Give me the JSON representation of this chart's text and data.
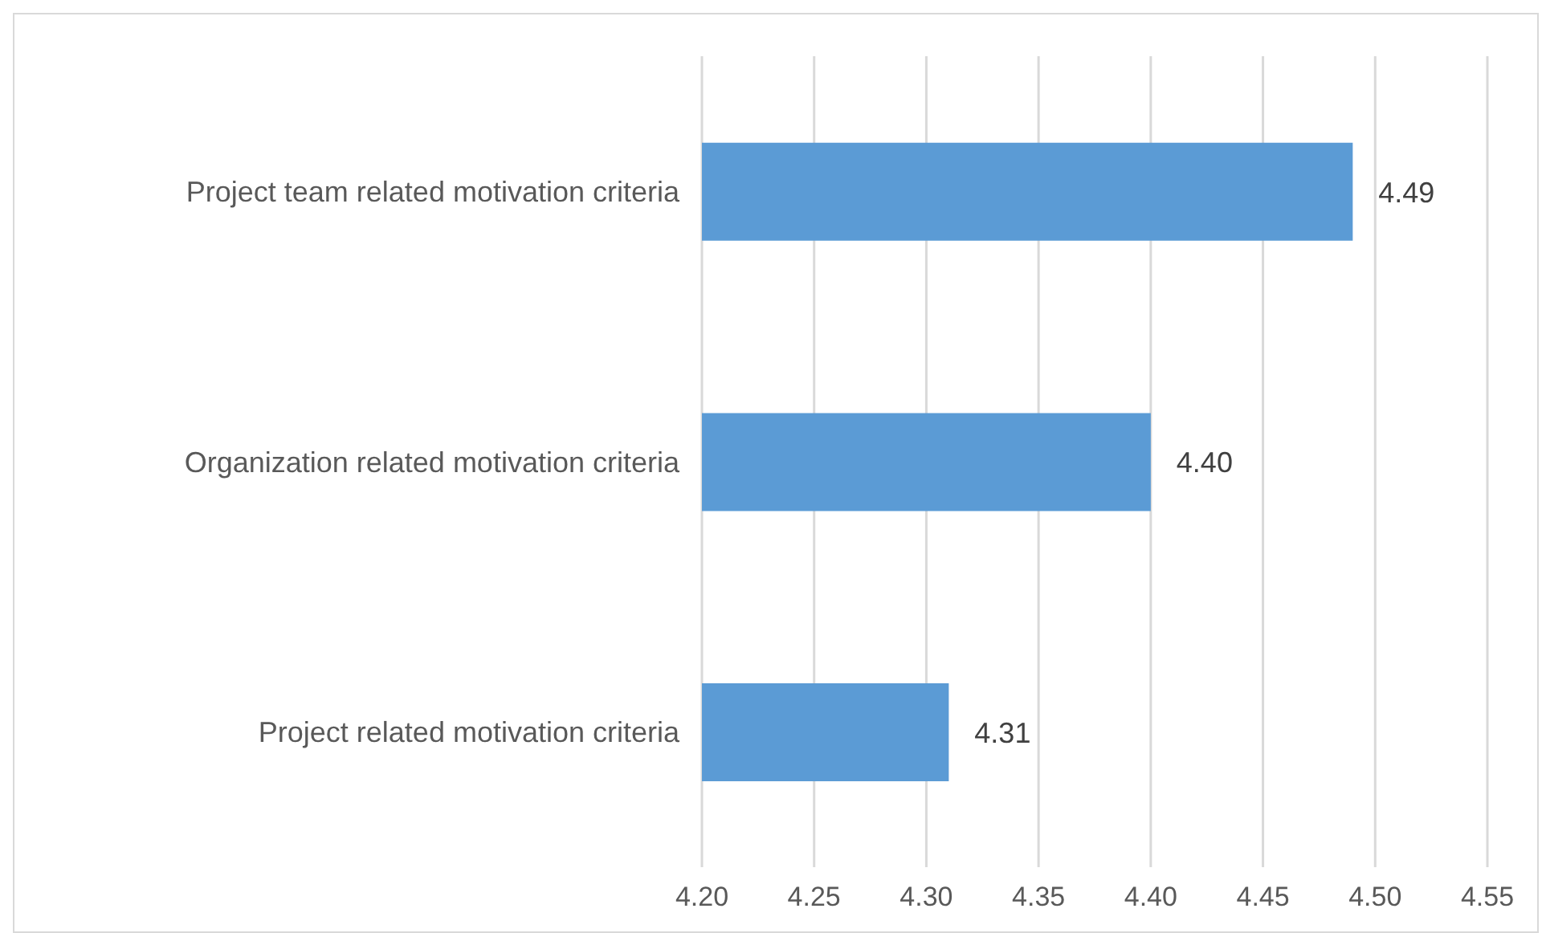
{
  "chart_data": {
    "type": "bar",
    "orientation": "horizontal",
    "categories": [
      "Project team related motivation criteria",
      "Organization related motivation criteria",
      "Project related motivation criteria"
    ],
    "values": [
      4.49,
      4.4,
      4.31
    ],
    "value_labels": [
      "4.49",
      "4.40",
      "4.31"
    ],
    "color": "#5b9bd5",
    "xlim": [
      4.2,
      4.55
    ],
    "xticks": [
      {
        "value": 4.2,
        "label": "4.20"
      },
      {
        "value": 4.25,
        "label": "4.25"
      },
      {
        "value": 4.3,
        "label": "4.30"
      },
      {
        "value": 4.35,
        "label": "4.35"
      },
      {
        "value": 4.4,
        "label": "4.40"
      },
      {
        "value": 4.45,
        "label": "4.45"
      },
      {
        "value": 4.5,
        "label": "4.50"
      },
      {
        "value": 4.55,
        "label": "4.55"
      }
    ],
    "grid": "x",
    "legend": false
  }
}
